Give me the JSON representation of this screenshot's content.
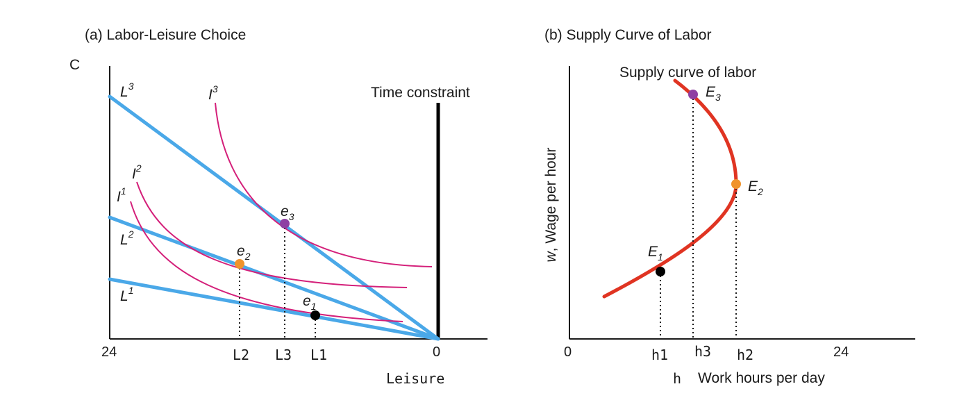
{
  "panel_a": {
    "title": "(a) Labor-Leisure Choice",
    "y_axis_label": "C",
    "x_axis_label": "Leisure",
    "x_ticks": {
      "left": "24",
      "right": "0",
      "L2": "L2",
      "L3": "L3",
      "L1": "L1"
    },
    "time_constraint_label": "Time constraint",
    "budget_lines": [
      {
        "label": "L",
        "sup": "3"
      },
      {
        "label": "L",
        "sup": "2"
      },
      {
        "label": "L",
        "sup": "1"
      }
    ],
    "indifference_curves": [
      {
        "label": "I",
        "sup": "3"
      },
      {
        "label": "I",
        "sup": "2"
      },
      {
        "label": "I",
        "sup": "1"
      }
    ],
    "equilibria": [
      {
        "label": "e",
        "sub": "3",
        "color": "#8e3fa3"
      },
      {
        "label": "e",
        "sub": "2",
        "color": "#f0932b"
      },
      {
        "label": "e",
        "sub": "1",
        "color": "#000000"
      }
    ]
  },
  "panel_b": {
    "title": "(b) Supply Curve of Labor",
    "y_axis_label": "w, Wage per hour",
    "y_axis_label_italic": "w",
    "y_axis_label_rest": ", Wage per hour",
    "x_axis_label_h": "h",
    "x_axis_label": "Work hours per day",
    "x_ticks": {
      "zero": "0",
      "h1": "h1",
      "h3": "h3",
      "h2": "h2",
      "max": "24"
    },
    "curve_label": "Supply curve of labor",
    "equilibria": [
      {
        "label": "E",
        "sub": "3",
        "color": "#8e3fa3"
      },
      {
        "label": "E",
        "sub": "2",
        "color": "#f0932b"
      },
      {
        "label": "E",
        "sub": "1",
        "color": "#000000"
      }
    ]
  },
  "colors": {
    "budget_line": "#4aa8e8",
    "indifference_curve": "#d4207a",
    "supply_curve": "#e03422"
  }
}
